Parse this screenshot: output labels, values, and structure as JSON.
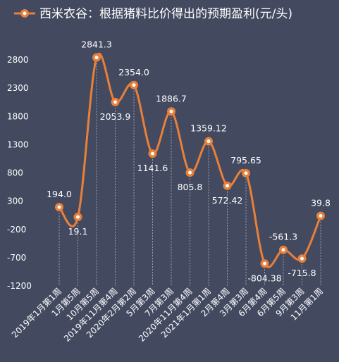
{
  "chart_data": {
    "type": "line",
    "legend": "西米衣谷：根据猪料比价得出的预期盈利(元/头)",
    "categories": [
      "2019年1月第1周",
      "1月第5周",
      "10月第5周",
      "2019年11月第4周",
      "2020年2月第2周",
      "5月第3周",
      "7月第3周",
      "2020年11月第4周",
      "2021年1月第1周",
      "2月第4周",
      "3月第3周",
      "6月第4周",
      "6月第5周",
      "9月第3周",
      "11月第1周"
    ],
    "values": [
      194.0,
      19.1,
      2841.3,
      2053.9,
      2354.0,
      1141.6,
      1886.7,
      805.8,
      1359.12,
      572.42,
      795.65,
      -804.38,
      -561.3,
      -715.8,
      39.8
    ],
    "data_labels": [
      "194.0",
      "19.1",
      "2841.3",
      "2053.9",
      "2354.0",
      "1141.6",
      "1886.7",
      "805.8",
      "1359.12",
      "572.42",
      "795.65",
      "-804.38",
      "-561.3",
      "-715.8",
      "39.8"
    ],
    "ylim": [
      -1200,
      2800
    ],
    "yticks": [
      -1200,
      -700,
      -200,
      300,
      800,
      1300,
      1800,
      2300,
      2800
    ],
    "ytick_labels": [
      "-1200",
      "-700",
      "-200",
      "300",
      "800",
      "1300",
      "1800",
      "2300",
      "2800"
    ],
    "colors": {
      "background": "#434a60",
      "line": "#e8803a",
      "text": "#ffffff",
      "dropline": "#9aa0b0"
    }
  }
}
